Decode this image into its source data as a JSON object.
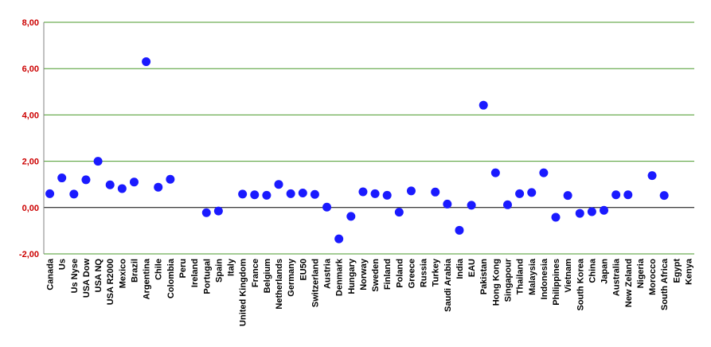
{
  "chart_data": {
    "type": "scatter",
    "title": "",
    "xlabel": "",
    "ylabel": "",
    "ylim": [
      -2,
      8
    ],
    "y_ticks": [
      "-2,00",
      "0,00",
      "2,00",
      "4,00",
      "6,00",
      "8,00"
    ],
    "grid": true,
    "legend": "none",
    "colors": {
      "marker": "#1a1aff",
      "grid": "#4a9a2a",
      "zero_line": "#000000",
      "tick_label": "#cc0000"
    },
    "categories": [
      "Canada",
      "Us",
      "Us Nyse",
      "USA Dow",
      "USA NQ",
      "USA R2000",
      "Mexico",
      "Brazil",
      "Argentina",
      "Chile",
      "Colombia",
      "Peru",
      "Ireland",
      "Portugal",
      "Spain",
      "Italy",
      "United Kingdom",
      "France",
      "Belgium",
      "Netherlands",
      "Germany",
      "EU50",
      "Switzerland",
      "Austria",
      "Denmark",
      "Hungary",
      "Norway",
      "Sweden",
      "Finland",
      "Poland",
      "Greece",
      "Russia",
      "Turkey",
      "Saudi Arabia",
      "India",
      "EAU",
      "Pakistan",
      "Hong Kong",
      "Singapour",
      "Thailand",
      "Malaysia",
      "Indonesia",
      "Philippines",
      "Vietnam",
      "South Korea",
      "China",
      "Japan",
      "Australia",
      "New Zeland",
      "Nigeria",
      "Morocco",
      "South Africa",
      "Egypt",
      "Kenya"
    ],
    "values": [
      0.6,
      1.28,
      0.58,
      1.2,
      2.0,
      0.98,
      0.82,
      1.1,
      6.3,
      0.88,
      1.22,
      null,
      null,
      -0.22,
      -0.15,
      null,
      0.58,
      0.55,
      0.53,
      1.0,
      0.6,
      0.63,
      0.57,
      0.02,
      -1.35,
      -0.38,
      0.68,
      0.6,
      0.53,
      -0.2,
      0.72,
      null,
      0.67,
      0.15,
      -0.98,
      0.1,
      4.42,
      1.5,
      0.12,
      0.6,
      0.65,
      1.5,
      -0.42,
      0.52,
      -0.25,
      -0.18,
      -0.12,
      0.55,
      0.55,
      null,
      1.38,
      0.52,
      null,
      null
    ]
  }
}
